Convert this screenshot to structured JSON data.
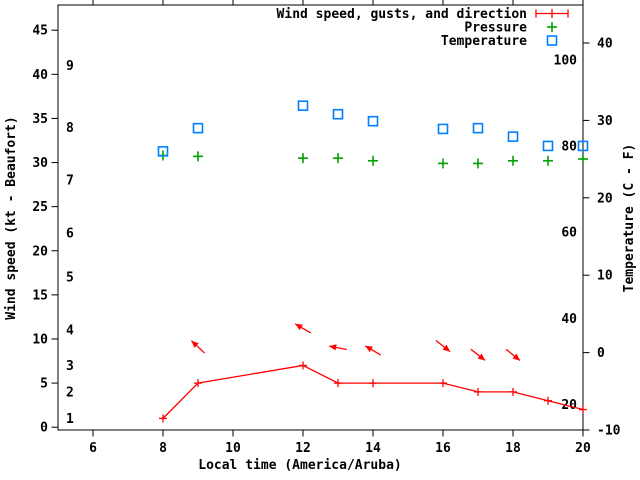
{
  "chart_data": {
    "type": "line",
    "title": "",
    "xlabel": "Local time (America/Aruba)",
    "ylabel_left": "Wind speed (kt - Beaufort)",
    "ylabel_right": "Temperature (C - F)",
    "x_range": [
      5,
      20
    ],
    "x_ticks": [
      6,
      8,
      10,
      12,
      14,
      16,
      18,
      20
    ],
    "y_left_range": [
      0,
      45
    ],
    "y_left_ticks": [
      0,
      5,
      10,
      15,
      20,
      25,
      30,
      35,
      40,
      45
    ],
    "beaufort_scale_labels": [
      {
        "label": "1",
        "kt": 1
      },
      {
        "label": "2",
        "kt": 4
      },
      {
        "label": "3",
        "kt": 7
      },
      {
        "label": "4",
        "kt": 11
      },
      {
        "label": "5",
        "kt": 17
      },
      {
        "label": "6",
        "kt": 22
      },
      {
        "label": "7",
        "kt": 28
      },
      {
        "label": "8",
        "kt": 34
      },
      {
        "label": "9",
        "kt": 41
      }
    ],
    "y_right_range_c": [
      -10,
      40
    ],
    "y_right_ticks_c": [
      -10,
      0,
      10,
      20,
      30,
      40
    ],
    "fahrenheit_scale_labels": [
      {
        "label": "20",
        "c": -6.7
      },
      {
        "label": "40",
        "c": 4.4
      },
      {
        "label": "60",
        "c": 15.6
      },
      {
        "label": "80",
        "c": 26.7
      },
      {
        "label": "100",
        "c": 37.8
      }
    ],
    "grid": false,
    "legend_position": "top-right-inside",
    "legend": [
      {
        "label": "Wind speed, gusts, and direction",
        "marker": "errorbar",
        "color": "#ff0000"
      },
      {
        "label": "Pressure",
        "marker": "plus",
        "color": "#00a000"
      },
      {
        "label": "Temperature",
        "marker": "square",
        "color": "#0080ff"
      }
    ],
    "series": {
      "x": [
        8,
        9,
        12,
        13,
        14,
        16,
        17,
        18,
        19,
        20
      ],
      "wind_speed_kt": [
        1,
        5,
        7,
        5,
        5,
        5,
        4,
        4,
        3,
        2
      ],
      "temperature_c": [
        26.0,
        29.0,
        31.9,
        30.8,
        29.9,
        28.9,
        29.0,
        27.9,
        26.7,
        26.7
      ],
      "pressure_plotted_on_left_axis": [
        30.8,
        30.7,
        30.5,
        30.5,
        30.2,
        29.9,
        29.9,
        30.2,
        30.2,
        30.4
      ]
    },
    "wind_direction_arrows": [
      {
        "x": 9,
        "kt": 9.1,
        "angle_deg": 223
      },
      {
        "x": 12,
        "kt": 11.2,
        "angle_deg": 210
      },
      {
        "x": 13,
        "kt": 9.0,
        "angle_deg": 191
      },
      {
        "x": 14,
        "kt": 8.7,
        "angle_deg": 211
      },
      {
        "x": 16,
        "kt": 9.2,
        "angle_deg": 38
      },
      {
        "x": 17,
        "kt": 8.2,
        "angle_deg": 38
      },
      {
        "x": 18,
        "kt": 8.2,
        "angle_deg": 39
      }
    ]
  },
  "colors": {
    "wind": "#ff0000",
    "pressure": "#00a000",
    "temperature": "#0080ff",
    "axis": "#000000",
    "background": "#ffffff"
  }
}
